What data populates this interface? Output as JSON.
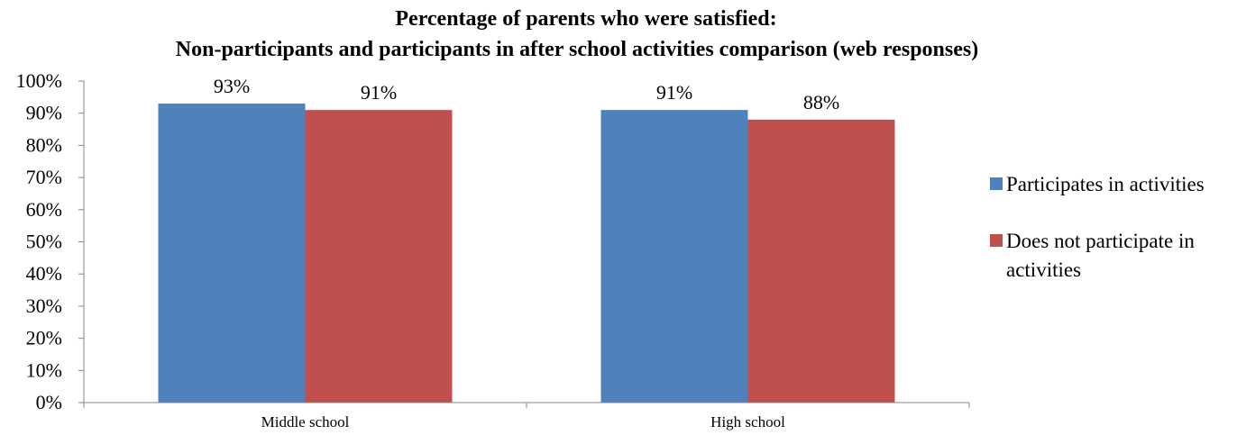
{
  "chart_data": {
    "type": "bar",
    "title": [
      "Percentage of parents who were satisfied:",
      "Non-participants and participants in after school activities comparison (web responses)"
    ],
    "categories": [
      "Middle school",
      "High school"
    ],
    "series": [
      {
        "name": "Participates in activities",
        "color": "#4F81BD",
        "values": [
          93,
          91
        ],
        "data_labels": [
          "93%",
          "91%"
        ]
      },
      {
        "name": "Does not participate in activities",
        "name_lines": [
          "Does not participate in",
          "activities"
        ],
        "color": "#C0504D",
        "values": [
          91,
          88
        ],
        "data_labels": [
          "91%",
          "88%"
        ]
      }
    ],
    "ylim": [
      0,
      100
    ],
    "y_ticks": [
      "0%",
      "10%",
      "20%",
      "30%",
      "40%",
      "50%",
      "60%",
      "70%",
      "80%",
      "90%",
      "100%"
    ],
    "xlabel": "",
    "ylabel": "",
    "grid": false,
    "legend_position": "right"
  }
}
